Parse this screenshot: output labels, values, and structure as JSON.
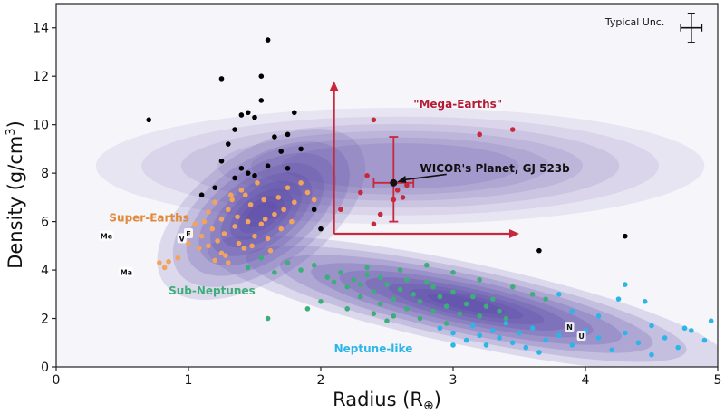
{
  "chart_data": {
    "type": "scatter",
    "xlabel": "Radius (R",
    "xlabel_symbol": "⊕",
    "xlabel_close": ")",
    "ylabel": "Density (g/cm",
    "ylabel_sup": "3",
    "ylabel_close": ")",
    "xlim": [
      0,
      5
    ],
    "ylim": [
      0,
      15
    ],
    "xticks": [
      0,
      1,
      2,
      3,
      4,
      5
    ],
    "yticks": [
      0,
      2,
      4,
      6,
      8,
      10,
      12,
      14
    ],
    "grid": false,
    "background_density": [
      {
        "cx": 1.55,
        "cy": 6.3,
        "sx": 0.9,
        "sy": 2.6,
        "angle": 35
      },
      {
        "cx": 3.1,
        "cy": 2.6,
        "sx": 2.0,
        "sy": 1.7,
        "angle": -12
      },
      {
        "cx": 2.6,
        "cy": 8.3,
        "sx": 2.3,
        "sy": 2.4,
        "angle": 0
      }
    ],
    "series": [
      {
        "name": "Super-Earths",
        "color": "#f2a35c",
        "points": [
          [
            0.78,
            4.3
          ],
          [
            0.85,
            4.35
          ],
          [
            0.82,
            4.1
          ],
          [
            0.92,
            4.5
          ],
          [
            1.0,
            5.1
          ],
          [
            1.02,
            5.5
          ],
          [
            1.05,
            5.9
          ],
          [
            1.08,
            4.9
          ],
          [
            1.1,
            5.4
          ],
          [
            1.12,
            6.0
          ],
          [
            1.15,
            6.4
          ],
          [
            1.18,
            5.7
          ],
          [
            1.2,
            6.8
          ],
          [
            1.22,
            5.2
          ],
          [
            1.25,
            6.1
          ],
          [
            1.27,
            5.5
          ],
          [
            1.28,
            4.6
          ],
          [
            1.3,
            6.5
          ],
          [
            1.32,
            7.1
          ],
          [
            1.35,
            5.8
          ],
          [
            1.37,
            6.2
          ],
          [
            1.4,
            7.3
          ],
          [
            1.42,
            4.9
          ],
          [
            1.45,
            6.0
          ],
          [
            1.47,
            6.7
          ],
          [
            1.5,
            5.4
          ],
          [
            1.52,
            7.6
          ],
          [
            1.55,
            5.9
          ],
          [
            1.57,
            6.9
          ],
          [
            1.6,
            5.3
          ],
          [
            1.62,
            4.8
          ],
          [
            1.65,
            6.3
          ],
          [
            1.68,
            7.0
          ],
          [
            1.7,
            5.7
          ],
          [
            1.72,
            6.5
          ],
          [
            1.75,
            7.4
          ],
          [
            1.78,
            6.0
          ],
          [
            1.8,
            6.8
          ],
          [
            1.85,
            7.6
          ],
          [
            1.9,
            7.2
          ],
          [
            1.95,
            6.9
          ],
          [
            1.38,
            5.1
          ],
          [
            1.25,
            4.7
          ],
          [
            1.15,
            5.0
          ],
          [
            1.33,
            6.9
          ],
          [
            1.48,
            5.0
          ],
          [
            1.58,
            6.1
          ],
          [
            1.43,
            7.1
          ],
          [
            1.3,
            4.3
          ],
          [
            1.2,
            4.4
          ]
        ]
      },
      {
        "name": "Sub-Neptunes",
        "color": "#3dae7a",
        "points": [
          [
            1.45,
            4.1
          ],
          [
            1.55,
            4.5
          ],
          [
            1.65,
            3.9
          ],
          [
            1.75,
            4.3
          ],
          [
            1.85,
            4.0
          ],
          [
            1.95,
            4.2
          ],
          [
            2.05,
            3.7
          ],
          [
            2.1,
            3.5
          ],
          [
            2.15,
            3.9
          ],
          [
            2.2,
            3.3
          ],
          [
            2.25,
            3.6
          ],
          [
            2.3,
            2.9
          ],
          [
            2.35,
            3.8
          ],
          [
            2.4,
            3.1
          ],
          [
            2.45,
            2.6
          ],
          [
            2.5,
            3.4
          ],
          [
            2.55,
            2.8
          ],
          [
            2.6,
            3.2
          ],
          [
            2.65,
            2.4
          ],
          [
            2.7,
            3.0
          ],
          [
            2.75,
            2.7
          ],
          [
            2.8,
            3.5
          ],
          [
            2.85,
            2.3
          ],
          [
            2.9,
            2.9
          ],
          [
            2.95,
            2.5
          ],
          [
            3.0,
            3.1
          ],
          [
            3.05,
            2.2
          ],
          [
            3.1,
            2.6
          ],
          [
            3.15,
            2.9
          ],
          [
            3.2,
            2.1
          ],
          [
            3.25,
            2.5
          ],
          [
            3.3,
            2.8
          ],
          [
            3.35,
            2.3
          ],
          [
            3.4,
            2.0
          ],
          [
            2.45,
            3.7
          ],
          [
            2.55,
            2.1
          ],
          [
            2.65,
            3.6
          ],
          [
            2.75,
            2.0
          ],
          [
            2.85,
            3.3
          ],
          [
            2.95,
            1.8
          ],
          [
            2.2,
            2.4
          ],
          [
            2.3,
            3.4
          ],
          [
            2.4,
            2.2
          ],
          [
            2.0,
            2.7
          ],
          [
            1.9,
            2.4
          ],
          [
            2.6,
            4.0
          ],
          [
            2.8,
            4.2
          ],
          [
            3.0,
            3.9
          ],
          [
            3.2,
            3.6
          ],
          [
            3.45,
            3.3
          ],
          [
            3.6,
            3.0
          ],
          [
            3.7,
            2.8
          ],
          [
            2.35,
            4.1
          ],
          [
            2.5,
            1.9
          ],
          [
            1.6,
            2.0
          ]
        ]
      },
      {
        "name": "Neptune-like",
        "color": "#2bb5e8",
        "points": [
          [
            2.9,
            1.6
          ],
          [
            3.0,
            1.4
          ],
          [
            3.1,
            1.1
          ],
          [
            3.15,
            1.7
          ],
          [
            3.2,
            1.3
          ],
          [
            3.25,
            0.9
          ],
          [
            3.3,
            1.5
          ],
          [
            3.35,
            1.2
          ],
          [
            3.4,
            1.8
          ],
          [
            3.45,
            1.0
          ],
          [
            3.5,
            1.4
          ],
          [
            3.55,
            0.8
          ],
          [
            3.6,
            1.6
          ],
          [
            3.7,
            1.1
          ],
          [
            3.8,
            1.3
          ],
          [
            3.9,
            0.9
          ],
          [
            4.0,
            1.5
          ],
          [
            4.1,
            1.2
          ],
          [
            4.2,
            0.7
          ],
          [
            4.3,
            1.4
          ],
          [
            4.4,
            1.0
          ],
          [
            4.5,
            1.7
          ],
          [
            4.6,
            1.2
          ],
          [
            4.7,
            0.8
          ],
          [
            4.8,
            1.5
          ],
          [
            4.9,
            1.1
          ],
          [
            4.95,
            1.9
          ],
          [
            3.8,
            3.0
          ],
          [
            4.1,
            2.1
          ],
          [
            4.25,
            2.8
          ],
          [
            4.3,
            3.4
          ],
          [
            4.45,
            2.7
          ],
          [
            3.65,
            0.6
          ],
          [
            4.5,
            0.5
          ],
          [
            3.0,
            0.9
          ],
          [
            3.9,
            2.3
          ],
          [
            4.75,
            1.6
          ]
        ]
      },
      {
        "name": "Mega-Earths",
        "color": "#c8283c",
        "points": [
          [
            2.15,
            6.5
          ],
          [
            2.3,
            7.2
          ],
          [
            2.35,
            7.9
          ],
          [
            2.4,
            5.9
          ],
          [
            2.45,
            6.3
          ],
          [
            2.55,
            6.9
          ],
          [
            2.58,
            7.3
          ],
          [
            2.62,
            7.0
          ],
          [
            2.65,
            7.5
          ],
          [
            3.2,
            9.6
          ],
          [
            3.45,
            9.8
          ],
          [
            2.4,
            10.2
          ]
        ]
      },
      {
        "name": "",
        "color": "#000000",
        "points": [
          [
            0.7,
            10.2
          ],
          [
            1.1,
            7.1
          ],
          [
            1.2,
            7.4
          ],
          [
            1.25,
            8.5
          ],
          [
            1.3,
            9.2
          ],
          [
            1.35,
            9.8
          ],
          [
            1.4,
            10.4
          ],
          [
            1.45,
            10.5
          ],
          [
            1.5,
            10.3
          ],
          [
            1.55,
            11.0
          ],
          [
            1.6,
            13.5
          ],
          [
            1.55,
            12.0
          ],
          [
            1.65,
            9.5
          ],
          [
            1.7,
            8.9
          ],
          [
            1.75,
            9.6
          ],
          [
            1.8,
            10.5
          ],
          [
            1.85,
            9.0
          ],
          [
            1.6,
            8.3
          ],
          [
            1.5,
            7.9
          ],
          [
            1.35,
            7.8
          ],
          [
            1.45,
            8.0
          ],
          [
            1.75,
            8.2
          ],
          [
            1.25,
            11.9
          ],
          [
            1.95,
            6.5
          ],
          [
            2.0,
            5.7
          ],
          [
            3.65,
            4.8
          ],
          [
            4.3,
            5.4
          ],
          [
            1.4,
            8.2
          ]
        ]
      }
    ],
    "annotations": [
      {
        "text": "Super-Earths",
        "x": 0.4,
        "y": 6.0,
        "color": "#e08a3a"
      },
      {
        "text": "Sub-Neptunes",
        "x": 0.85,
        "y": 3.0,
        "color": "#3dae7a"
      },
      {
        "text": "Neptune-like",
        "x": 2.1,
        "y": 0.6,
        "color": "#2bb5e8"
      },
      {
        "text": "\"Mega-Earths\"",
        "x": 2.7,
        "y": 10.7,
        "color": "#b31b34"
      },
      {
        "text": "WICOR's Planet, GJ 523b",
        "x": 2.75,
        "y": 8.05,
        "color": "#111111"
      },
      {
        "text": "Typical Unc.",
        "x": 4.15,
        "y": 14.1,
        "color": "#111111"
      }
    ],
    "solar_system": [
      {
        "label": "Me",
        "x": 0.38,
        "y": 5.4
      },
      {
        "label": "V",
        "x": 0.95,
        "y": 5.3
      },
      {
        "label": "E",
        "x": 1.0,
        "y": 5.5
      },
      {
        "label": "Ma",
        "x": 0.53,
        "y": 3.9
      },
      {
        "label": "N",
        "x": 3.88,
        "y": 1.64
      },
      {
        "label": "U",
        "x": 3.97,
        "y": 1.27
      }
    ],
    "highlight": {
      "name": "GJ 523b",
      "x": 2.55,
      "y": 7.6,
      "x_err": [
        2.4,
        2.7
      ],
      "y_err": [
        6.0,
        9.5
      ],
      "color": "#c8283c"
    },
    "region_arrows": {
      "origin": [
        2.1,
        5.5
      ],
      "up_to": [
        2.1,
        11.8
      ],
      "right_to": [
        3.5,
        5.5
      ],
      "color": "#c8283c"
    },
    "typical_uncertainty": {
      "x": 4.8,
      "y": 14.0,
      "dx": 0.08,
      "dy": 0.6
    }
  }
}
